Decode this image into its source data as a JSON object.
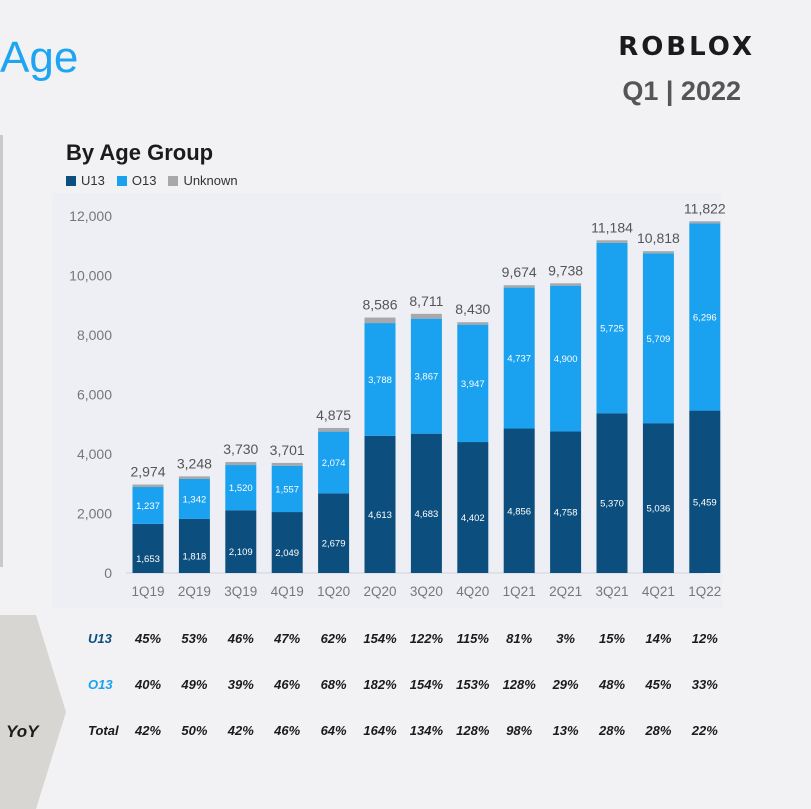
{
  "header": {
    "page_title": "Age",
    "brand": "ROBLOX",
    "quarter": "Q1 | 2022"
  },
  "chart_data": {
    "type": "bar",
    "stacked": true,
    "title": "By Age Group",
    "xlabel": "",
    "ylabel": "",
    "ylim": [
      0,
      12000
    ],
    "yticks": [
      0,
      2000,
      4000,
      6000,
      8000,
      10000,
      12000
    ],
    "ytick_labels": [
      "0",
      "2,000",
      "4,000",
      "6,000",
      "8,000",
      "10,000",
      "12,000"
    ],
    "legend_position": "top-left",
    "grid": false,
    "categories": [
      "1Q19",
      "2Q19",
      "3Q19",
      "4Q19",
      "1Q20",
      "2Q20",
      "3Q20",
      "4Q20",
      "1Q21",
      "2Q21",
      "3Q21",
      "4Q21",
      "1Q22"
    ],
    "series": [
      {
        "name": "U13",
        "color": "#0c4f7e",
        "values": [
          1653,
          1818,
          2109,
          2049,
          2679,
          4613,
          4683,
          4402,
          4856,
          4758,
          5370,
          5036,
          5459
        ]
      },
      {
        "name": "O13",
        "color": "#1aa1ef",
        "values": [
          1237,
          1342,
          1520,
          1557,
          2074,
          3788,
          3867,
          3947,
          4737,
          4900,
          5725,
          5709,
          6296
        ]
      },
      {
        "name": "Unknown",
        "color": "#a8a8a8",
        "values": [
          84,
          88,
          101,
          95,
          122,
          185,
          161,
          81,
          81,
          80,
          89,
          73,
          67
        ]
      }
    ],
    "series_value_labels": [
      [
        "1,653",
        "1,818",
        "2,109",
        "2,049",
        "2,679",
        "4,613",
        "4,683",
        "4,402",
        "4,856",
        "4,758",
        "5,370",
        "5,036",
        "5,459"
      ],
      [
        "1,237",
        "1,342",
        "1,520",
        "1,557",
        "2,074",
        "3,788",
        "3,867",
        "3,947",
        "4,737",
        "4,900",
        "5,725",
        "5,709",
        "6,296"
      ]
    ],
    "totals": [
      2974,
      3248,
      3730,
      3701,
      4875,
      8586,
      8711,
      8430,
      9674,
      9738,
      11184,
      10818,
      11822
    ],
    "total_labels": [
      "2,974",
      "3,248",
      "3,730",
      "3,701",
      "4,875",
      "8,586",
      "8,711",
      "8,430",
      "9,674",
      "9,738",
      "11,184",
      "10,818",
      "11,822"
    ]
  },
  "yoy": {
    "label": "YoY",
    "rows": [
      {
        "label": "U13",
        "values": [
          "45%",
          "53%",
          "46%",
          "47%",
          "62%",
          "154%",
          "122%",
          "115%",
          "81%",
          "3%",
          "15%",
          "14%",
          "12%"
        ]
      },
      {
        "label": "O13",
        "values": [
          "40%",
          "49%",
          "39%",
          "46%",
          "68%",
          "182%",
          "154%",
          "153%",
          "128%",
          "29%",
          "48%",
          "45%",
          "33%"
        ]
      },
      {
        "label": "Total",
        "values": [
          "42%",
          "50%",
          "42%",
          "46%",
          "64%",
          "164%",
          "134%",
          "128%",
          "98%",
          "13%",
          "28%",
          "28%",
          "22%"
        ]
      }
    ]
  }
}
